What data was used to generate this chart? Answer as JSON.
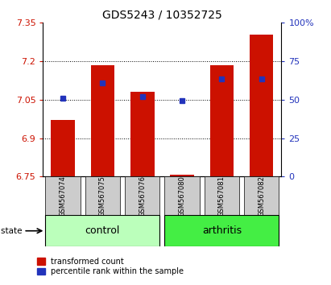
{
  "title": "GDS5243 / 10352725",
  "samples": [
    "GSM567074",
    "GSM567075",
    "GSM567076",
    "GSM567080",
    "GSM567081",
    "GSM567082"
  ],
  "groups": [
    "control",
    "control",
    "control",
    "arthritis",
    "arthritis",
    "arthritis"
  ],
  "red_bar_tops": [
    6.97,
    7.185,
    7.08,
    6.757,
    7.185,
    7.305
  ],
  "blue_markers": [
    7.057,
    7.115,
    7.063,
    7.048,
    7.13,
    7.13
  ],
  "bar_bottom": 6.75,
  "ylim_left": [
    6.75,
    7.35
  ],
  "ylim_right": [
    0,
    100
  ],
  "yticks_left": [
    6.75,
    6.9,
    7.05,
    7.2,
    7.35
  ],
  "ytick_labels_left": [
    "6.75",
    "6.9",
    "7.05",
    "7.2",
    "7.35"
  ],
  "yticks_right": [
    0,
    25,
    50,
    75,
    100
  ],
  "ytick_labels_right": [
    "0",
    "25",
    "50",
    "75",
    "100%"
  ],
  "hlines": [
    6.9,
    7.05,
    7.2
  ],
  "bar_color": "#cc1100",
  "blue_color": "#2233bb",
  "control_color": "#bbffbb",
  "arthritis_color": "#44ee44",
  "tick_label_bg": "#cccccc",
  "bar_width": 0.6,
  "blue_marker_size": 5,
  "title_fontsize": 10,
  "axis_fontsize": 8
}
